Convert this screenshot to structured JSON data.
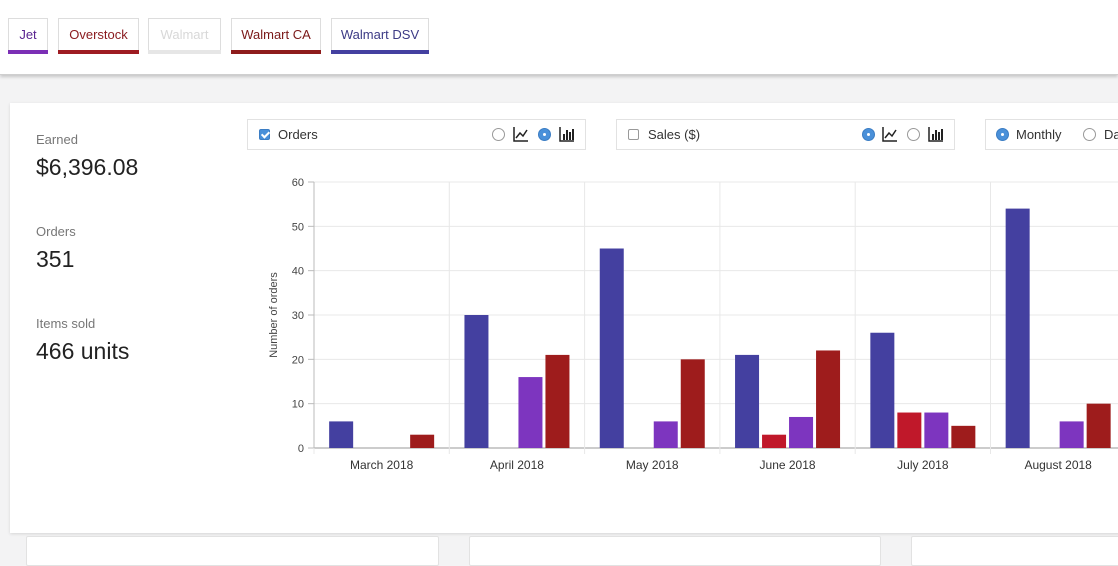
{
  "tabs": [
    {
      "label": "Jet",
      "color": "#7b2fb5",
      "text_color": "#5a2490"
    },
    {
      "label": "Overstock",
      "color": "#9e1c22",
      "text_color": "#8a1a1e"
    },
    {
      "label": "Walmart",
      "color": "#e6e6e6",
      "text_color": "#d8d8d8"
    },
    {
      "label": "Walmart CA",
      "color": "#8e1c1c",
      "text_color": "#7a1818"
    },
    {
      "label": "Walmart DSV",
      "color": "#4440a0",
      "text_color": "#3c3a85"
    }
  ],
  "stats": {
    "earned_label": "Earned",
    "earned_value": "$6,396.08",
    "orders_label": "Orders",
    "orders_value": "351",
    "items_label": "Items sold",
    "items_value": "466 units"
  },
  "controls": {
    "orders": {
      "label": "Orders",
      "checked": true,
      "mode": "bar"
    },
    "sales": {
      "label": "Sales ($)",
      "checked": false,
      "mode": "line"
    },
    "period": {
      "monthly_label": "Monthly",
      "daily_label": "Da",
      "selected": "monthly"
    }
  },
  "chart_data": {
    "type": "bar",
    "ylabel": "Number of orders",
    "xlabel": "",
    "ylim": [
      0,
      60
    ],
    "yticks": [
      0,
      10,
      20,
      30,
      40,
      50,
      60
    ],
    "grid": true,
    "legend": "none",
    "categories": [
      "March 2018",
      "April 2018",
      "May 2018",
      "June 2018",
      "July 2018",
      "August 2018"
    ],
    "series": [
      {
        "color": "#4440a0",
        "values": [
          6,
          30,
          45,
          21,
          26,
          54
        ]
      },
      {
        "color": "#c0182a",
        "values": [
          0,
          0,
          0,
          3,
          8,
          0
        ]
      },
      {
        "color": "#7d35bf",
        "values": [
          0,
          16,
          6,
          7,
          8,
          6
        ]
      },
      {
        "color": "#9e1c1c",
        "values": [
          3,
          21,
          20,
          22,
          5,
          10
        ]
      }
    ]
  }
}
